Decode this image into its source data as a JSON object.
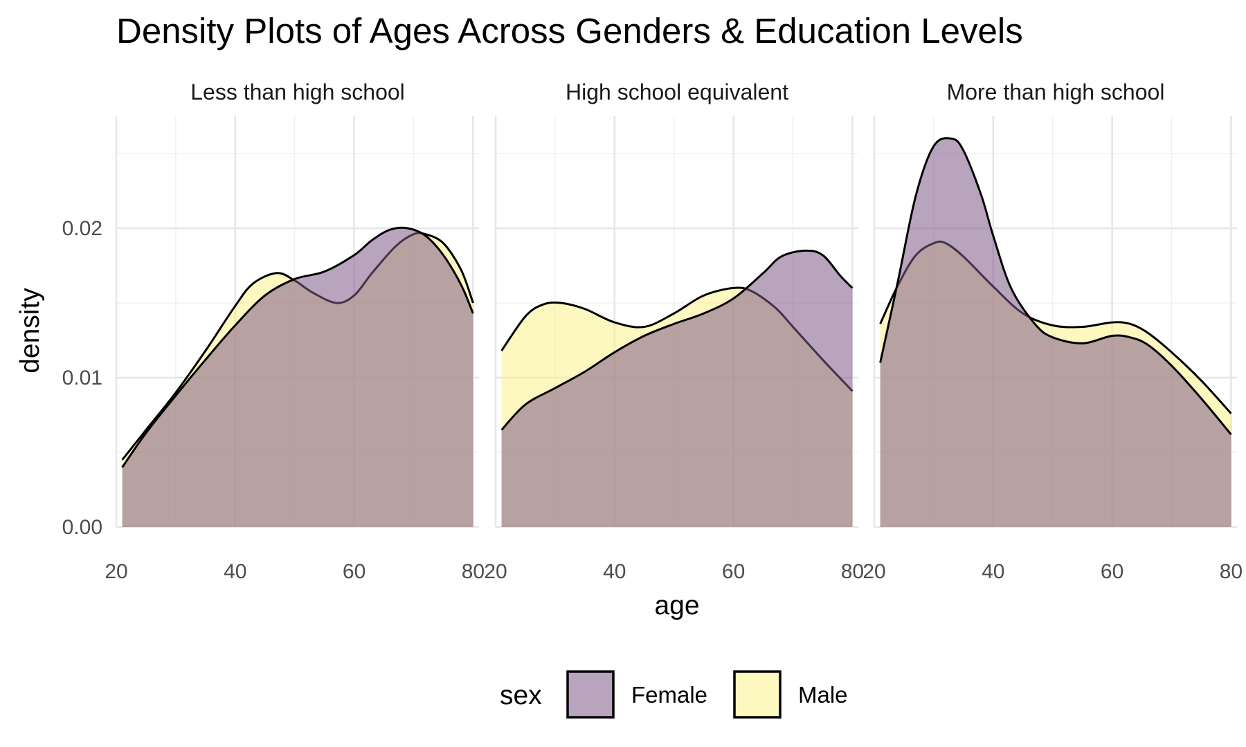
{
  "chart_data": {
    "type": "area",
    "title": "Density Plots of Ages Across Genders & Education Levels",
    "xlabel": "age",
    "ylabel": "density",
    "xlim": [
      20,
      81
    ],
    "ylim": [
      0,
      0.0275
    ],
    "x_ticks": [
      "20",
      "40",
      "60",
      "80"
    ],
    "y_ticks": [
      "0.00",
      "0.01",
      "0.02"
    ],
    "x_tick_values": [
      20,
      40,
      60,
      80
    ],
    "y_tick_values": [
      0,
      0.01,
      0.02
    ],
    "grid": true,
    "legend": {
      "title": "sex",
      "position": "bottom",
      "entries": [
        {
          "label": "Female",
          "color": "#7f5a89"
        },
        {
          "label": "Male",
          "color": "#fbf28a"
        }
      ]
    },
    "panels": [
      {
        "label": "Less than high school",
        "series": [
          {
            "name": "Male",
            "x": [
              21,
              25,
              30,
              35,
              40,
              43,
              47,
              50,
              53,
              57,
              60,
              63,
              67,
              70,
              72,
              75,
              78,
              80
            ],
            "y": [
              0.0045,
              0.0065,
              0.009,
              0.0118,
              0.0148,
              0.0163,
              0.017,
              0.0165,
              0.0157,
              0.015,
              0.0155,
              0.017,
              0.0188,
              0.0196,
              0.0196,
              0.019,
              0.0172,
              0.015
            ]
          },
          {
            "name": "Female",
            "x": [
              21,
              25,
              30,
              35,
              40,
              45,
              50,
              55,
              60,
              63,
              66,
              69,
              72,
              75,
              78,
              80
            ],
            "y": [
              0.004,
              0.0063,
              0.0088,
              0.0112,
              0.0135,
              0.0155,
              0.0166,
              0.0171,
              0.0182,
              0.0192,
              0.0199,
              0.02,
              0.0195,
              0.0182,
              0.0162,
              0.0143
            ]
          }
        ]
      },
      {
        "label": "High school equivalent",
        "series": [
          {
            "name": "Male",
            "x": [
              21,
              25,
              28,
              31,
              35,
              40,
              45,
              50,
              55,
              60,
              63,
              67,
              70,
              75,
              80
            ],
            "y": [
              0.0118,
              0.0141,
              0.0149,
              0.015,
              0.0146,
              0.0137,
              0.0134,
              0.0143,
              0.0155,
              0.016,
              0.0158,
              0.0147,
              0.0134,
              0.0112,
              0.0091
            ]
          },
          {
            "name": "Female",
            "x": [
              21,
              25,
              30,
              35,
              40,
              45,
              50,
              55,
              60,
              65,
              68,
              72,
              75,
              78,
              80
            ],
            "y": [
              0.0065,
              0.0082,
              0.0093,
              0.0104,
              0.0117,
              0.0128,
              0.0136,
              0.0143,
              0.0153,
              0.017,
              0.0181,
              0.0185,
              0.0182,
              0.0168,
              0.016
            ]
          }
        ]
      },
      {
        "label": "More than high school",
        "series": [
          {
            "name": "Male",
            "x": [
              21,
              24,
              27,
              30,
              32,
              35,
              40,
              45,
              50,
              55,
              60,
              63,
              66,
              70,
              75,
              80
            ],
            "y": [
              0.0136,
              0.0162,
              0.0182,
              0.019,
              0.019,
              0.0181,
              0.0161,
              0.0143,
              0.0135,
              0.0134,
              0.0137,
              0.0136,
              0.013,
              0.0117,
              0.0098,
              0.0076
            ]
          },
          {
            "name": "Female",
            "x": [
              21,
              24,
              27,
              30,
              33,
              35,
              38,
              40,
              43,
              47,
              50,
              55,
              60,
              63,
              66,
              70,
              75,
              80
            ],
            "y": [
              0.011,
              0.0165,
              0.0222,
              0.0255,
              0.026,
              0.0252,
              0.0222,
              0.0195,
              0.016,
              0.0136,
              0.0127,
              0.0123,
              0.0128,
              0.0127,
              0.0122,
              0.0108,
              0.0086,
              0.0062
            ]
          }
        ]
      }
    ]
  }
}
